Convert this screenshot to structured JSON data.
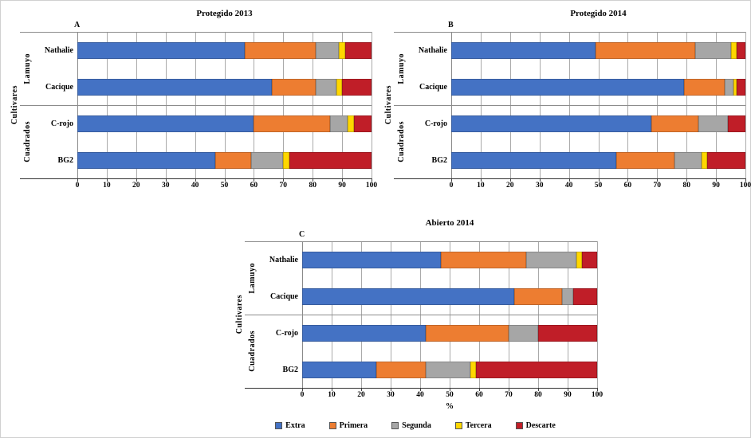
{
  "axis": {
    "ylabel": "Cultivares",
    "xlabel": "%",
    "xlim": [
      0,
      100
    ],
    "xticks": [
      0,
      10,
      20,
      30,
      40,
      50,
      60,
      70,
      80,
      90,
      100
    ],
    "grid": "vertical"
  },
  "groups": [
    {
      "name": "Lamuyo",
      "categories": [
        "Nathalie",
        "Cacique"
      ]
    },
    {
      "name": "Cuadrados",
      "categories": [
        "C-rojo",
        "BG2"
      ]
    }
  ],
  "legend": {
    "position": "bottom",
    "items": [
      {
        "label": "Extra",
        "color": "#4472C4"
      },
      {
        "label": "Primera",
        "color": "#ED7D31"
      },
      {
        "label": "Segunda",
        "color": "#A6A6A6"
      },
      {
        "label": "Tercera",
        "color": "#FFD700"
      },
      {
        "label": "Descarte",
        "color": "#C01E28"
      }
    ]
  },
  "chart_data": [
    {
      "panel": "A",
      "title": "Protegido 2013",
      "type": "bar",
      "stacked": true,
      "orientation": "horizontal",
      "xlim": [
        0,
        100
      ],
      "categories": [
        "Nathalie",
        "Cacique",
        "C-rojo",
        "BG2"
      ],
      "series": [
        {
          "name": "Extra",
          "values": [
            57,
            66,
            60,
            47
          ]
        },
        {
          "name": "Primera",
          "values": [
            24,
            15,
            26,
            12
          ]
        },
        {
          "name": "Segunda",
          "values": [
            8,
            7,
            6,
            11
          ]
        },
        {
          "name": "Tercera",
          "values": [
            2,
            2,
            2,
            2
          ]
        },
        {
          "name": "Descarte",
          "values": [
            9,
            10,
            6,
            28
          ]
        }
      ],
      "show_xlabel": false
    },
    {
      "panel": "B",
      "title": "Protegido 2014",
      "type": "bar",
      "stacked": true,
      "orientation": "horizontal",
      "xlim": [
        0,
        100
      ],
      "categories": [
        "Nathalie",
        "Cacique",
        "C-rojo",
        "BG2"
      ],
      "series": [
        {
          "name": "Extra",
          "values": [
            49,
            79,
            68,
            56
          ]
        },
        {
          "name": "Primera",
          "values": [
            34,
            14,
            16,
            20
          ]
        },
        {
          "name": "Segunda",
          "values": [
            12,
            3,
            10,
            9
          ]
        },
        {
          "name": "Tercera",
          "values": [
            2,
            1,
            0,
            2
          ]
        },
        {
          "name": "Descarte",
          "values": [
            3,
            3,
            6,
            13
          ]
        }
      ],
      "show_xlabel": false
    },
    {
      "panel": "C",
      "title": "Abierto 2014",
      "type": "bar",
      "stacked": true,
      "orientation": "horizontal",
      "xlim": [
        0,
        100
      ],
      "categories": [
        "Nathalie",
        "Cacique",
        "C-rojo",
        "BG2"
      ],
      "series": [
        {
          "name": "Extra",
          "values": [
            47,
            72,
            42,
            25
          ]
        },
        {
          "name": "Primera",
          "values": [
            29,
            16,
            28,
            17
          ]
        },
        {
          "name": "Segunda",
          "values": [
            17,
            4,
            10,
            15
          ]
        },
        {
          "name": "Tercera",
          "values": [
            2,
            0,
            0,
            2
          ]
        },
        {
          "name": "Descarte",
          "values": [
            5,
            8,
            20,
            41
          ]
        }
      ],
      "show_xlabel": true
    }
  ]
}
